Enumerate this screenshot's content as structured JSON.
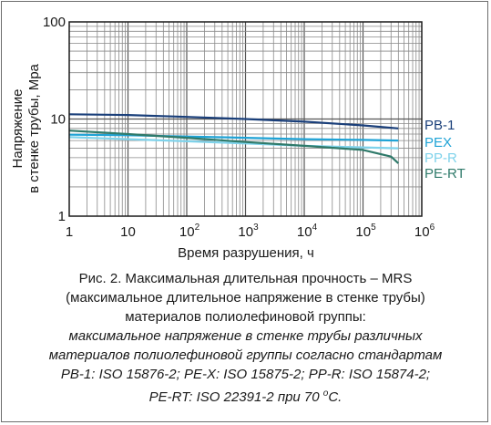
{
  "chart_data": {
    "type": "line",
    "x_scale": "log",
    "y_scale": "log",
    "xlim": [
      1,
      1000000
    ],
    "ylim": [
      1,
      100
    ],
    "xlabel": "Время разрушения, ч",
    "ylabel_lines": [
      "Напряжение",
      "в стенке трубы, Мра"
    ],
    "x_ticks": [
      {
        "base": "1",
        "exp": ""
      },
      {
        "base": "10",
        "exp": ""
      },
      {
        "base": "10",
        "exp": "2"
      },
      {
        "base": "10",
        "exp": "3"
      },
      {
        "base": "10",
        "exp": "4"
      },
      {
        "base": "10",
        "exp": "5"
      },
      {
        "base": "10",
        "exp": "6"
      }
    ],
    "y_ticks": [
      "1",
      "10",
      "100"
    ],
    "grid": true,
    "series": [
      {
        "name": "PB-1",
        "color": "#1a3f7a",
        "points": [
          [
            1,
            11.2
          ],
          [
            10,
            11.0
          ],
          [
            100,
            10.5
          ],
          [
            1000,
            10.0
          ],
          [
            10000,
            9.4
          ],
          [
            100000,
            8.6
          ],
          [
            400000,
            8.0
          ]
        ]
      },
      {
        "name": "PEX",
        "color": "#1fa3d6",
        "points": [
          [
            1,
            6.9
          ],
          [
            10,
            6.8
          ],
          [
            100,
            6.6
          ],
          [
            1000,
            6.4
          ],
          [
            10000,
            6.2
          ],
          [
            100000,
            6.1
          ],
          [
            400000,
            6.0
          ]
        ]
      },
      {
        "name": "PP-R",
        "color": "#7fd3eb",
        "points": [
          [
            1,
            6.5
          ],
          [
            10,
            6.2
          ],
          [
            100,
            5.9
          ],
          [
            1000,
            5.6
          ],
          [
            10000,
            5.3
          ],
          [
            100000,
            5.1
          ],
          [
            400000,
            5.0
          ]
        ]
      },
      {
        "name": "PE-RT",
        "color": "#2f7a6a",
        "points": [
          [
            1,
            7.6
          ],
          [
            10,
            7.0
          ],
          [
            100,
            6.4
          ],
          [
            1000,
            5.8
          ],
          [
            10000,
            5.3
          ],
          [
            100000,
            4.8
          ],
          [
            300000,
            4.1
          ],
          [
            400000,
            3.5
          ]
        ]
      }
    ]
  },
  "caption": {
    "line1": "Рис. 2. Максимальная длительная прочность – MRS",
    "line2": "(максимальное длительное напряжение в стенке трубы)",
    "line3": "материалов полиолефиновой группы:",
    "line4": "максимальное напряжение в стенке трубы различных",
    "line5": "материалов полиолефиновой группы согласно стандартам",
    "line6": "PB-1: ISO 15876-2; PE-X: ISO 15875-2; PP-R: ISO 15874-2;",
    "line7_pre": "PE-RT: ISO 22391-2 при 70 ",
    "line7_sup": "o",
    "line7_post": "С."
  }
}
